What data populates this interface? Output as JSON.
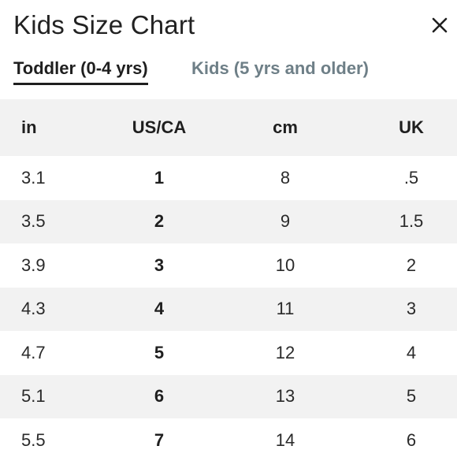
{
  "title": "Kids Size Chart",
  "tabs": [
    {
      "label": "Toddler (0-4 yrs)",
      "active": true
    },
    {
      "label": "Kids (5 yrs and older)",
      "active": false
    }
  ],
  "table": {
    "headers": [
      "in",
      "US/CA",
      "cm",
      "UK"
    ],
    "rows": [
      [
        "3.1",
        "1",
        "8",
        ".5"
      ],
      [
        "3.5",
        "2",
        "9",
        "1.5"
      ],
      [
        "3.9",
        "3",
        "10",
        "2"
      ],
      [
        "4.3",
        "4",
        "11",
        "3"
      ],
      [
        "4.7",
        "5",
        "12",
        "4"
      ],
      [
        "5.1",
        "6",
        "13",
        "5"
      ],
      [
        "5.5",
        "7",
        "14",
        "6"
      ]
    ]
  },
  "colors": {
    "active_tab": "#1f1f1f",
    "inactive_tab": "#6e7f87",
    "row_shade": "#f2f2f2"
  },
  "icons": {
    "close": "close-icon"
  }
}
